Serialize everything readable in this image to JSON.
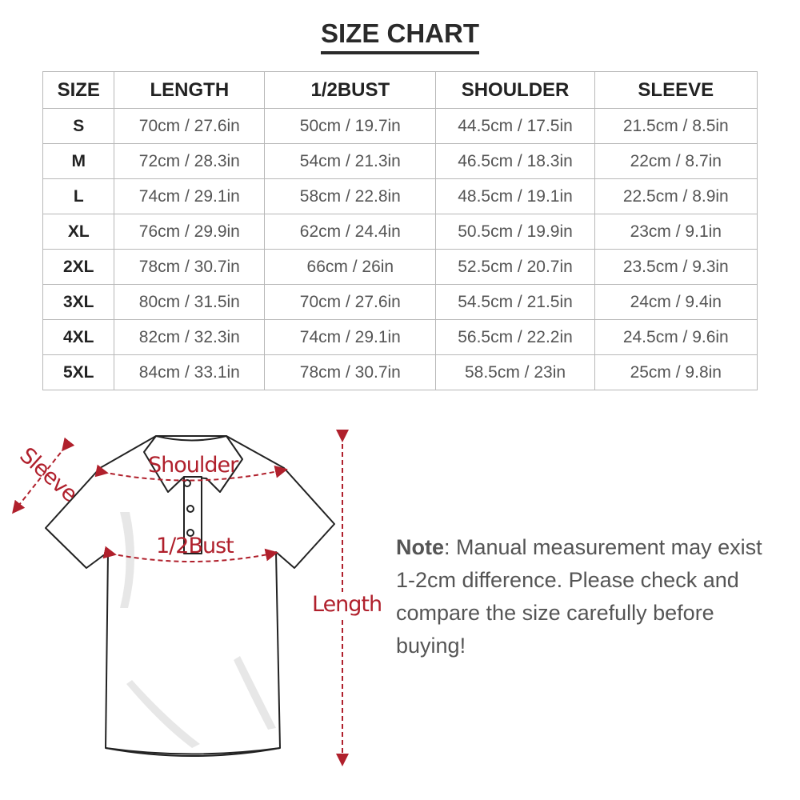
{
  "title": "SIZE CHART",
  "table": {
    "headers": [
      "SIZE",
      "LENGTH",
      "1/2BUST",
      "SHOULDER",
      "SLEEVE"
    ],
    "rows": [
      [
        "S",
        "70cm / 27.6in",
        "50cm / 19.7in",
        "44.5cm / 17.5in",
        "21.5cm / 8.5in"
      ],
      [
        "M",
        "72cm / 28.3in",
        "54cm / 21.3in",
        "46.5cm / 18.3in",
        "22cm / 8.7in"
      ],
      [
        "L",
        "74cm / 29.1in",
        "58cm / 22.8in",
        "48.5cm / 19.1in",
        "22.5cm / 8.9in"
      ],
      [
        "XL",
        "76cm / 29.9in",
        "62cm / 24.4in",
        "50.5cm / 19.9in",
        "23cm / 9.1in"
      ],
      [
        "2XL",
        "78cm / 30.7in",
        "66cm / 26in",
        "52.5cm / 20.7in",
        "23.5cm / 9.3in"
      ],
      [
        "3XL",
        "80cm / 31.5in",
        "70cm / 27.6in",
        "54.5cm / 21.5in",
        "24cm / 9.4in"
      ],
      [
        "4XL",
        "82cm / 32.3in",
        "74cm / 29.1in",
        "56.5cm / 22.2in",
        "24.5cm / 9.6in"
      ],
      [
        "5XL",
        "84cm / 33.1in",
        "78cm / 30.7in",
        "58.5cm / 23in",
        "25cm / 9.8in"
      ]
    ]
  },
  "diagram": {
    "labels": {
      "sleeve": "Sleeve",
      "shoulder": "Shoulder",
      "bust": "1/2Bust",
      "length": "Length"
    },
    "accent_color": "#b0202c"
  },
  "note": {
    "label": "Note",
    "text": ": Manual measurement may exist 1-2cm difference. Please check and compare the size carefully before buying!"
  }
}
